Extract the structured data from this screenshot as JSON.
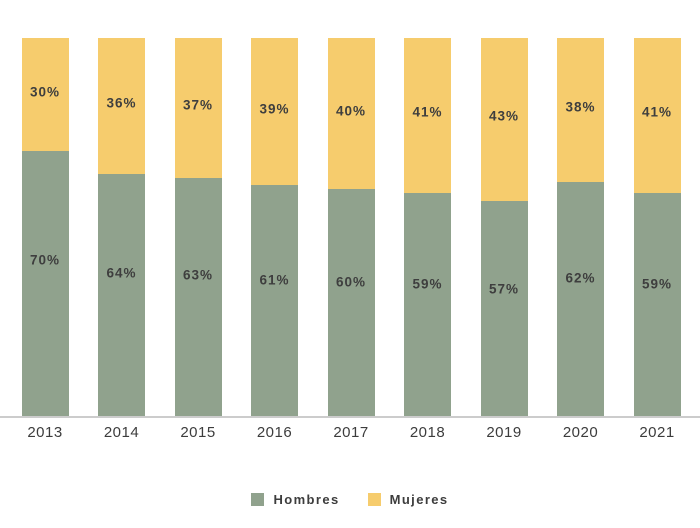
{
  "chart_data": {
    "type": "bar",
    "stacked": true,
    "orientation": "vertical",
    "title": "",
    "xlabel": "",
    "ylabel": "",
    "ylim": [
      0,
      100
    ],
    "grid": false,
    "legend_position": "bottom",
    "value_suffix": "%",
    "categories": [
      "2013",
      "2014",
      "2015",
      "2016",
      "2017",
      "2018",
      "2019",
      "2020",
      "2021"
    ],
    "series": [
      {
        "name": "Hombres",
        "color": "#90A28D",
        "values": [
          70,
          64,
          63,
          61,
          60,
          59,
          57,
          62,
          59
        ],
        "labels": [
          "70%",
          "64%",
          "63%",
          "61%",
          "60%",
          "59%",
          "57%",
          "62%",
          "59%"
        ]
      },
      {
        "name": "Mujeres",
        "color": "#F6CC6D",
        "values": [
          30,
          36,
          37,
          39,
          40,
          41,
          43,
          38,
          41
        ],
        "labels": [
          "30%",
          "36%",
          "37%",
          "39%",
          "40%",
          "41%",
          "43%",
          "38%",
          "41%"
        ]
      }
    ]
  },
  "colors": {
    "hombres_green": "#90A28D",
    "mujeres_yellow": "#F6CC6D",
    "label_text": "#3e3e3e",
    "axis_line": "#cccccc",
    "background": "#ffffff"
  }
}
